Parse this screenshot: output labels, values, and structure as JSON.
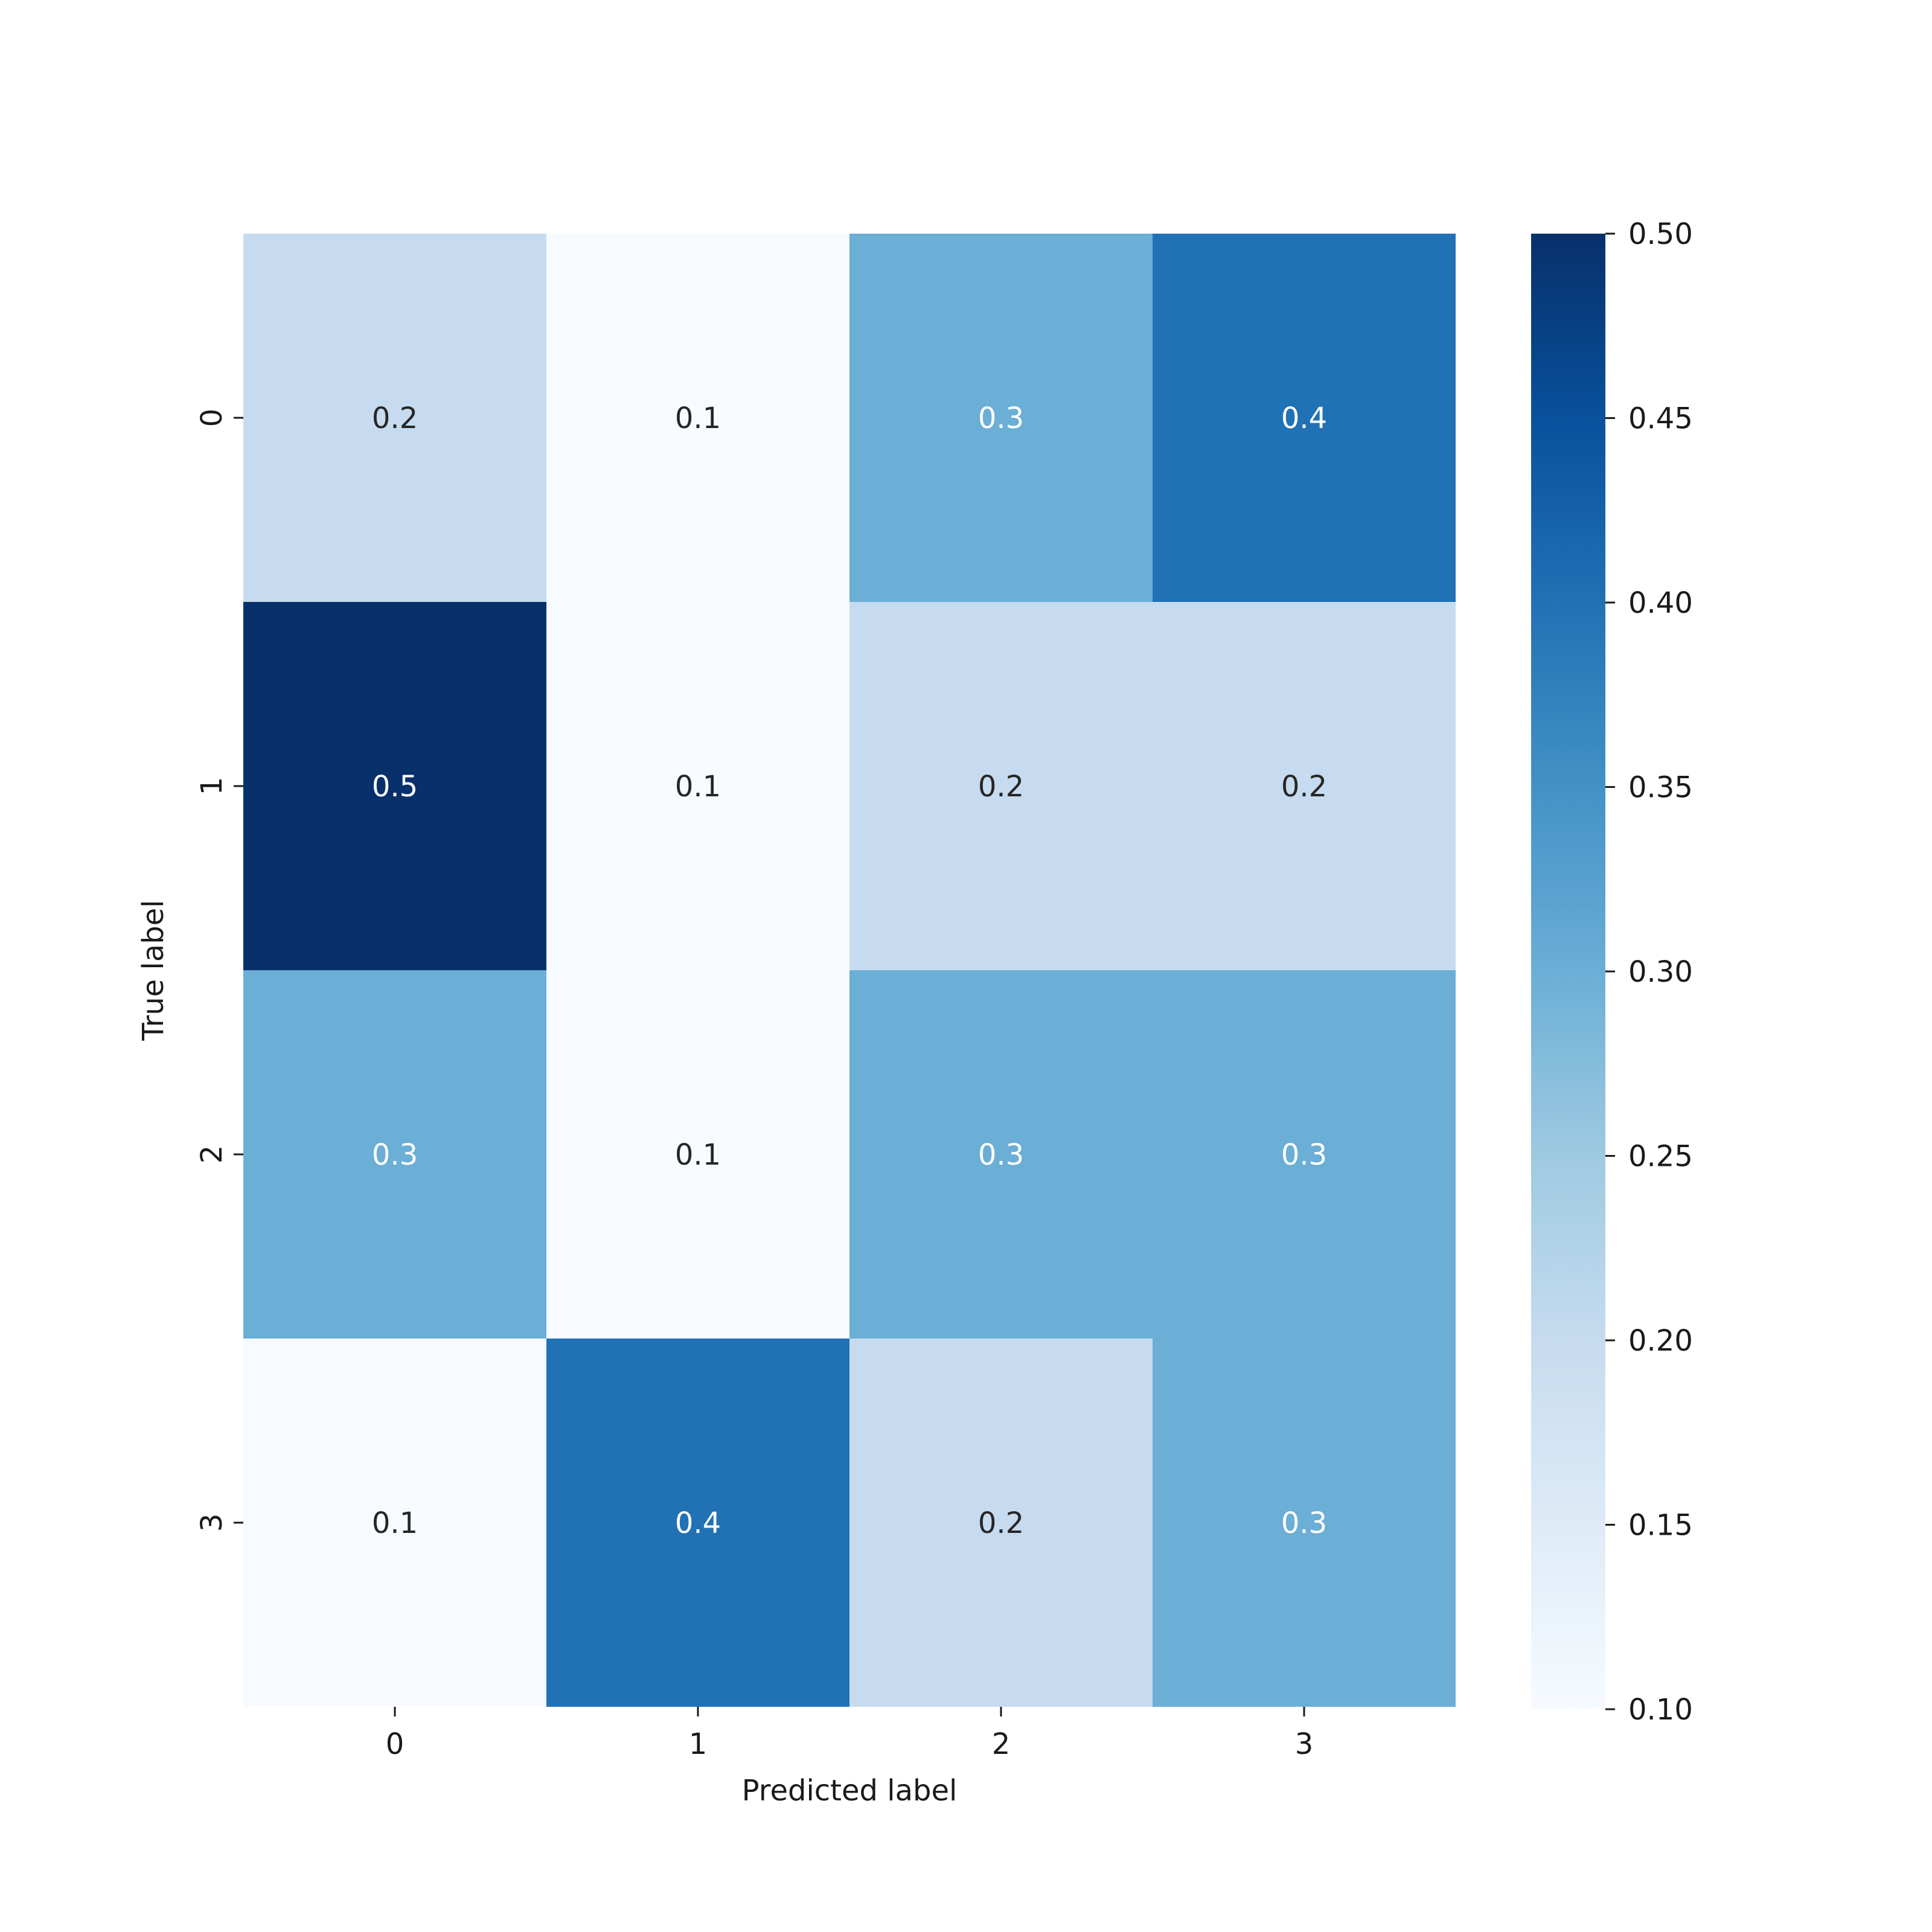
{
  "chart_data": {
    "type": "heatmap",
    "title": "",
    "xlabel": "Predicted label",
    "ylabel": "True label",
    "x_categories": [
      "0",
      "1",
      "2",
      "3"
    ],
    "y_categories": [
      "0",
      "1",
      "2",
      "3"
    ],
    "values": [
      [
        0.2,
        0.1,
        0.3,
        0.4
      ],
      [
        0.5,
        0.1,
        0.2,
        0.2
      ],
      [
        0.3,
        0.1,
        0.3,
        0.3
      ],
      [
        0.1,
        0.4,
        0.2,
        0.3
      ]
    ],
    "cell_labels": [
      [
        "0.2",
        "0.1",
        "0.3",
        "0.4"
      ],
      [
        "0.5",
        "0.1",
        "0.2",
        "0.2"
      ],
      [
        "0.3",
        "0.1",
        "0.3",
        "0.3"
      ],
      [
        "0.1",
        "0.4",
        "0.2",
        "0.3"
      ]
    ],
    "colorbar": {
      "colormap": "Blues",
      "range": [
        0.1,
        0.5
      ],
      "ticks": [
        0.1,
        0.15,
        0.2,
        0.25,
        0.3,
        0.35,
        0.4,
        0.45,
        0.5
      ],
      "tick_labels": [
        "0.10",
        "0.15",
        "0.20",
        "0.25",
        "0.30",
        "0.35",
        "0.40",
        "0.45",
        "0.50"
      ]
    },
    "grid": false
  }
}
